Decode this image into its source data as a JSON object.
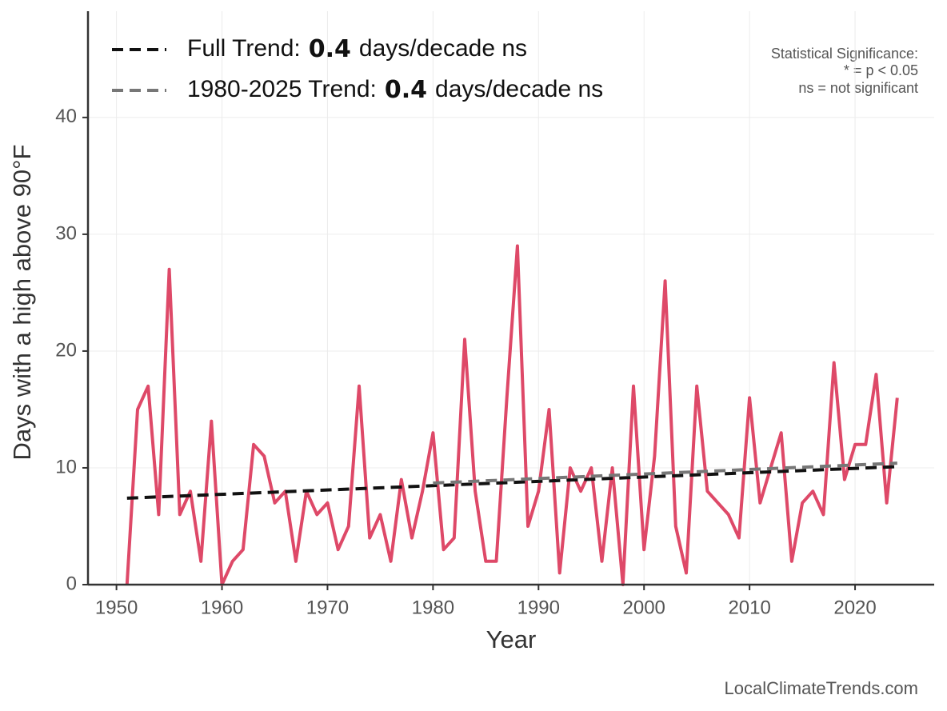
{
  "chart_data": {
    "type": "line",
    "x_label": "Year",
    "y_label": "Days with a high above 90°F",
    "x": [
      1951,
      1952,
      1953,
      1954,
      1955,
      1956,
      1957,
      1958,
      1959,
      1960,
      1961,
      1962,
      1963,
      1964,
      1965,
      1966,
      1967,
      1968,
      1969,
      1970,
      1971,
      1972,
      1973,
      1974,
      1975,
      1976,
      1977,
      1978,
      1979,
      1980,
      1981,
      1982,
      1983,
      1984,
      1985,
      1986,
      1987,
      1988,
      1989,
      1990,
      1991,
      1992,
      1993,
      1994,
      1995,
      1996,
      1997,
      1998,
      1999,
      2000,
      2001,
      2002,
      2003,
      2004,
      2005,
      2006,
      2007,
      2008,
      2009,
      2010,
      2011,
      2012,
      2013,
      2014,
      2015,
      2016,
      2017,
      2018,
      2019,
      2020,
      2021,
      2022,
      2023,
      2024
    ],
    "series": [
      {
        "color": "#de4968",
        "values": [
          0,
          15,
          17,
          6,
          27,
          6,
          8,
          2,
          14,
          0,
          2,
          3,
          12,
          11,
          7,
          8,
          2,
          8,
          6,
          7,
          3,
          5,
          17,
          4,
          6,
          2,
          9,
          4,
          8,
          13,
          3,
          4,
          21,
          8,
          2,
          2,
          16,
          29,
          5,
          8,
          15,
          1,
          10,
          8,
          10,
          2,
          10,
          0,
          17,
          3,
          11,
          26,
          5,
          1,
          17,
          8,
          7,
          6,
          4,
          16,
          7,
          10,
          13,
          2,
          7,
          8,
          6,
          19,
          9,
          12,
          12,
          18,
          7,
          16
        ]
      }
    ],
    "trend_lines": [
      {
        "label_start": "Full Trend:",
        "rate": "0.4",
        "label_end": "days/decade ns",
        "color": "#111111",
        "x": [
          1951,
          2024
        ],
        "values": [
          7.4,
          10.1
        ]
      },
      {
        "label_start": "1980-2025 Trend:",
        "rate": "0.4",
        "label_end": "days/decade ns",
        "color": "#777777",
        "x": [
          1980,
          2024
        ],
        "values": [
          8.7,
          10.4
        ]
      }
    ],
    "significance_note": [
      "Statistical Significance:",
      "* = p < 0.05",
      "ns = not significant"
    ],
    "source": "LocalClimateTrends.com",
    "xlim": [
      1947.3,
      2027.5
    ],
    "ylim": [
      0,
      49.1
    ],
    "xticks": [
      1950,
      1960,
      1970,
      1980,
      1990,
      2000,
      2010,
      2020
    ],
    "yticks": [
      0,
      10,
      20,
      30,
      40
    ],
    "grid": true
  }
}
